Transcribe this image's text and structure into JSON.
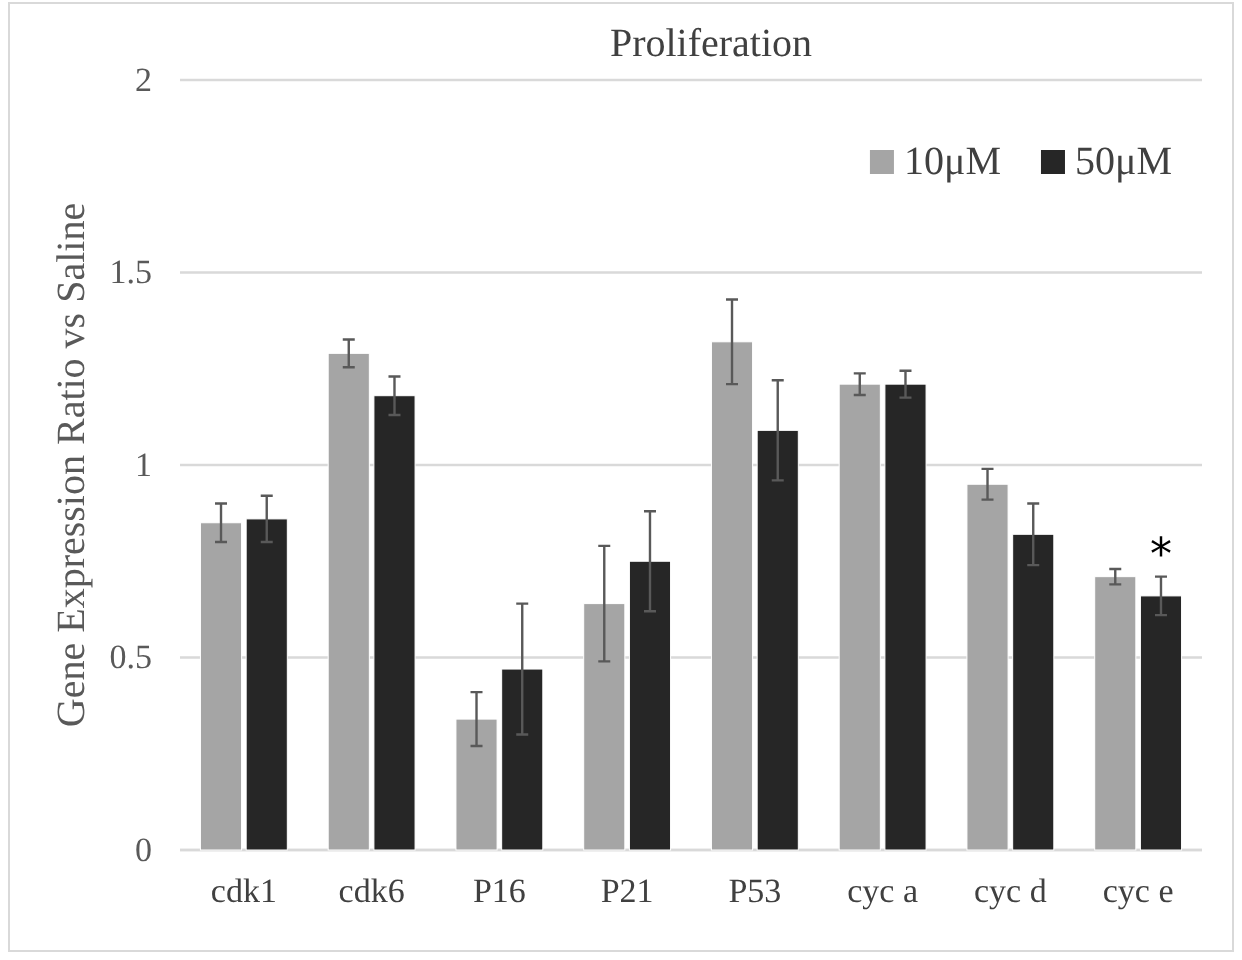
{
  "chart_data": {
    "type": "bar",
    "title": "Proliferation",
    "ylabel": "Gene Expression Ratio vs Saline",
    "categories": [
      "cdk1",
      "cdk6",
      "P16",
      "P21",
      "P53",
      "cyc a",
      "cyc d",
      "cyc e"
    ],
    "series": [
      {
        "name": "10μM",
        "color": "#a5a5a5",
        "values": [
          0.85,
          1.29,
          0.34,
          0.64,
          1.32,
          1.21,
          0.95,
          0.71
        ],
        "errors": [
          0.05,
          0.036,
          0.07,
          0.15,
          0.11,
          0.028,
          0.04,
          0.02
        ]
      },
      {
        "name": "50μM",
        "color": "#262626",
        "values": [
          0.86,
          1.18,
          0.47,
          0.75,
          1.09,
          1.21,
          0.82,
          0.66
        ],
        "errors": [
          0.06,
          0.05,
          0.17,
          0.13,
          0.13,
          0.035,
          0.08,
          0.05
        ]
      }
    ],
    "ylim": [
      0,
      2
    ],
    "yticks": [
      0,
      0.5,
      1,
      1.5,
      2
    ],
    "grid": "y",
    "legend": "top right",
    "annotations": [
      {
        "text": "*",
        "x": "cyc e",
        "y": 0.71
      }
    ]
  }
}
